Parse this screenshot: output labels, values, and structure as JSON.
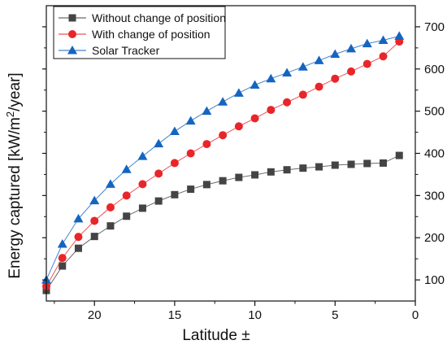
{
  "chart_data": {
    "type": "line",
    "xlabel": "Latitude ±",
    "ylabel_prefix": "Energy captured [kW/m",
    "ylabel_sup": "2",
    "ylabel_suffix": "/year]",
    "xlim": [
      23,
      0
    ],
    "ylim": [
      50,
      750
    ],
    "x_ticks": [
      20,
      15,
      10,
      5,
      0
    ],
    "y_ticks": [
      100,
      200,
      300,
      400,
      500,
      600,
      700
    ],
    "x_tick_labels": [
      "20",
      "15",
      "10",
      "5",
      "0"
    ],
    "y_tick_labels": [
      "100",
      "200",
      "300",
      "400",
      "500",
      "600",
      "700"
    ],
    "grid": false,
    "legend_position": "top-left",
    "x": [
      23,
      22,
      21,
      20,
      19,
      18,
      17,
      16,
      15,
      14,
      13,
      12,
      11,
      10,
      9,
      8,
      7,
      6,
      5,
      4,
      3,
      2,
      1
    ],
    "series": [
      {
        "name": "Without change of position",
        "color": "#444444",
        "marker": "square",
        "values": [
          75,
          133,
          175,
          203,
          228,
          251,
          270,
          287,
          302,
          315,
          326,
          335,
          343,
          349,
          356,
          361,
          365,
          368,
          372,
          374,
          376,
          377,
          395
        ]
      },
      {
        "name": "With change of position",
        "color": "#e8262a",
        "marker": "circle",
        "values": [
          85,
          152,
          202,
          240,
          272,
          300,
          327,
          352,
          377,
          400,
          422,
          443,
          464,
          483,
          503,
          521,
          539,
          558,
          577,
          594,
          612,
          630,
          665
        ]
      },
      {
        "name": "Solar Tracker",
        "color": "#1565c0",
        "marker": "triangle",
        "values": [
          100,
          185,
          245,
          288,
          327,
          362,
          393,
          423,
          452,
          477,
          500,
          522,
          543,
          562,
          577,
          591,
          605,
          620,
          635,
          648,
          660,
          668,
          678
        ]
      }
    ]
  }
}
